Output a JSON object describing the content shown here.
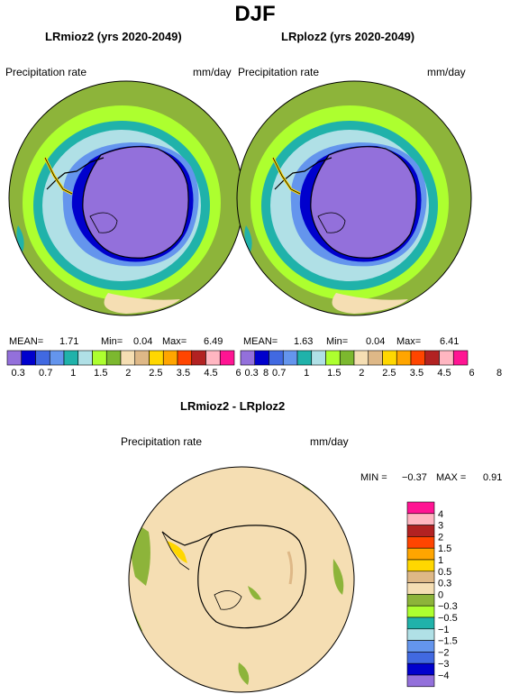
{
  "figure": {
    "title": "DJF"
  },
  "panels": [
    {
      "title": "LRmioz2 (yrs 2020-2049)",
      "variable": "Precipitation rate",
      "units": "mm/day",
      "stats": {
        "mean_label": "MEAN=",
        "mean": "1.71",
        "min_label": "Min=",
        "min": "0.04",
        "max_label": "Max=",
        "max": "6.49"
      }
    },
    {
      "title": "LRploz2 (yrs 2020-2049)",
      "variable": "Precipitation rate",
      "units": "mm/day",
      "stats": {
        "mean_label": "MEAN=",
        "mean": "1.63",
        "min_label": "Min=",
        "min": "0.04",
        "max_label": "Max=",
        "max": "6.41"
      }
    },
    {
      "title": "LRmioz2 - LRploz2",
      "variable": "Precipitation rate",
      "units": "mm/day",
      "stats": {
        "min_label": "MIN =",
        "min": "−0.37",
        "max_label": "MAX =",
        "max": "0.91"
      }
    }
  ],
  "colorbar_precip": {
    "labels": [
      "0.3",
      "0.7",
      "1",
      "1.5",
      "2",
      "2.5",
      "3.5",
      "4.5",
      "6",
      "8"
    ],
    "colors": [
      "#9370db",
      "#0000cd",
      "#4169e1",
      "#6495ed",
      "#20b2aa",
      "#b0e0e6",
      "#adff2f",
      "#7cb82f",
      "#f5deb3",
      "#deb887",
      "#ffd700",
      "#ffa500",
      "#ff4500",
      "#b22222",
      "#ffb6c1",
      "#ff1493"
    ]
  },
  "colorbar_diff": {
    "labels": [
      "4",
      "3",
      "2",
      "1.5",
      "1",
      "0.5",
      "0.3",
      "0",
      "−0.3",
      "−0.5",
      "−1",
      "−1.5",
      "−2",
      "−3",
      "−4"
    ],
    "colors": [
      "#ff1493",
      "#ffb6c1",
      "#b22222",
      "#ff4500",
      "#ffa500",
      "#ffd700",
      "#deb887",
      "#f5deb3",
      "#8db43a",
      "#adff2f",
      "#20b2aa",
      "#b0e0e6",
      "#6495ed",
      "#4169e1",
      "#0000cd",
      "#9370db"
    ]
  }
}
